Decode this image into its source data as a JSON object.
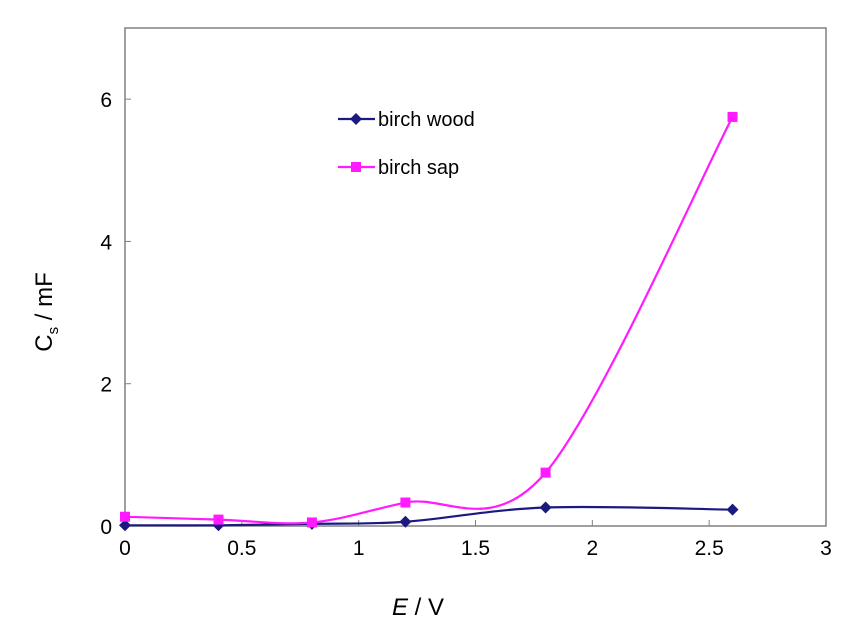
{
  "chart_data": {
    "type": "line",
    "xlabel": "E / V",
    "xlabel_italic": "E",
    "xlabel_rest": " / V",
    "ylabel_main": "C",
    "ylabel_sub": "s",
    "ylabel_rest": " / mF",
    "xlim": [
      0,
      3
    ],
    "ylim": [
      0,
      7
    ],
    "xticks": [
      0,
      0.5,
      1,
      1.5,
      2,
      2.5,
      3
    ],
    "xtick_labels": [
      "0",
      "0.5",
      "1",
      "1.5",
      "2",
      "2.5",
      "3"
    ],
    "yticks": [
      0,
      2,
      4,
      6
    ],
    "ytick_labels": [
      "0",
      "2",
      "4",
      "6"
    ],
    "grid": false,
    "smoothed": true,
    "legend_placement": "top-center",
    "series": [
      {
        "name": "birch wood",
        "color": "#1a1a80",
        "marker": "diamond",
        "x": [
          0,
          0.4,
          0.8,
          1.2,
          1.8,
          2.6
        ],
        "y": [
          0.01,
          0.01,
          0.03,
          0.06,
          0.26,
          0.23
        ]
      },
      {
        "name": "birch sap",
        "color": "#ff1aff",
        "marker": "square",
        "x": [
          0,
          0.4,
          0.8,
          1.2,
          1.8,
          2.6
        ],
        "y": [
          0.13,
          0.09,
          0.05,
          0.33,
          0.75,
          5.75
        ]
      }
    ]
  }
}
